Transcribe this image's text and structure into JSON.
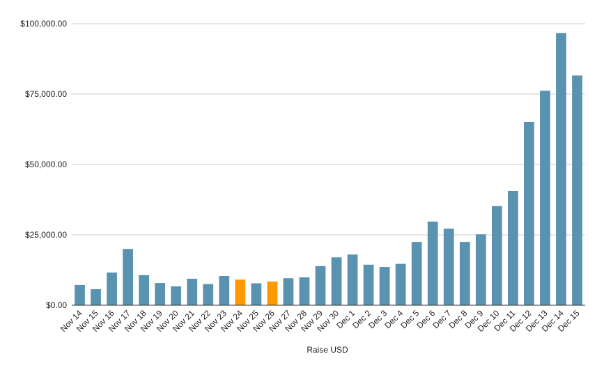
{
  "chart_data": {
    "type": "bar",
    "title": "",
    "xlabel": "Raise USD",
    "ylabel": "",
    "ylim": [
      0,
      100000
    ],
    "y_ticks": [
      0,
      25000,
      50000,
      75000,
      100000
    ],
    "y_tick_labels": [
      "$0.00",
      "$25,000.00",
      "$50,000.00",
      "$75,000.00",
      "$100,000.00"
    ],
    "grid": true,
    "legend": "none",
    "categories": [
      "Nov 14",
      "Nov 15",
      "Nov 16",
      "Nov 17",
      "Nov 18",
      "Nov 19",
      "Nov 20",
      "Nov 21",
      "Nov 22",
      "Nov 23",
      "Nov 24",
      "Nov 25",
      "Nov 26",
      "Nov 27",
      "Nov 28",
      "Nov 29",
      "Nov 30",
      "Dec 1",
      "Dec 2",
      "Dec 3",
      "Dec 4",
      "Dec 5",
      "Dec 6",
      "Dec 7",
      "Dec 8",
      "Dec 9",
      "Dec 10",
      "Dec 11",
      "Dec 12",
      "Dec 13",
      "Dec 14",
      "Dec 15"
    ],
    "values": [
      7200,
      5700,
      11600,
      20000,
      10700,
      7900,
      6700,
      9400,
      7500,
      10400,
      9100,
      7800,
      8400,
      9600,
      9900,
      13900,
      17000,
      18000,
      14400,
      13600,
      14700,
      22500,
      29700,
      27200,
      22500,
      25200,
      35200,
      40600,
      65100,
      76200,
      96700,
      81600
    ],
    "bar_colors": [
      "#5a93b0",
      "#5a93b0",
      "#5a93b0",
      "#5a93b0",
      "#5a93b0",
      "#5a93b0",
      "#5a93b0",
      "#5a93b0",
      "#5a93b0",
      "#5a93b0",
      "#ff9900",
      "#5a93b0",
      "#ff9900",
      "#5a93b0",
      "#5a93b0",
      "#5a93b0",
      "#5a93b0",
      "#5a93b0",
      "#5a93b0",
      "#5a93b0",
      "#5a93b0",
      "#5a93b0",
      "#5a93b0",
      "#5a93b0",
      "#5a93b0",
      "#5a93b0",
      "#5a93b0",
      "#5a93b0",
      "#5a93b0",
      "#5a93b0",
      "#5a93b0",
      "#5a93b0"
    ],
    "colors": {
      "bar": "#5a93b0",
      "highlight": "#ff9900",
      "grid": "#cccccc",
      "axis": "#333333",
      "text": "#222222"
    }
  }
}
